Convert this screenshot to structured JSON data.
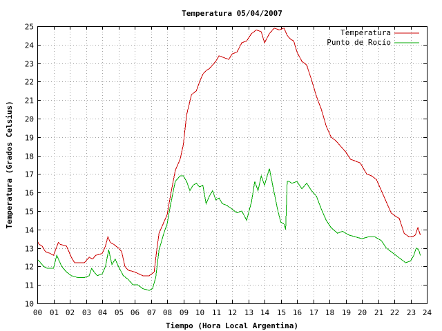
{
  "chart_data": {
    "type": "line",
    "title": "Temperatura 05/04/2007",
    "xlabel": "Tiempo (Hora Local Argentina)",
    "ylabel": "Temperatura (Grados Celsius)",
    "xlim": [
      0,
      24
    ],
    "ylim": [
      10,
      25
    ],
    "xticks": [
      "00",
      "01",
      "02",
      "03",
      "04",
      "05",
      "06",
      "07",
      "08",
      "09",
      "10",
      "11",
      "12",
      "13",
      "14",
      "15",
      "16",
      "17",
      "18",
      "19",
      "20",
      "21",
      "22",
      "23",
      "24"
    ],
    "yticks": [
      "10",
      "11",
      "12",
      "13",
      "14",
      "15",
      "16",
      "17",
      "18",
      "19",
      "20",
      "21",
      "22",
      "23",
      "24",
      "25"
    ],
    "grid": true,
    "legend_position": "top-right",
    "series": [
      {
        "name": "Temperatura",
        "color": "#cc0000",
        "x": [
          0.0,
          0.1,
          0.3,
          0.5,
          0.8,
          1.0,
          1.3,
          1.4,
          1.8,
          2.1,
          2.3,
          2.6,
          2.9,
          3.2,
          3.4,
          3.6,
          4.0,
          4.2,
          4.35,
          4.5,
          4.7,
          5.0,
          5.2,
          5.4,
          5.6,
          6.0,
          6.5,
          6.9,
          7.2,
          7.35,
          7.5,
          7.8,
          8.0,
          8.2,
          8.5,
          8.8,
          9.0,
          9.2,
          9.5,
          9.8,
          10.0,
          10.2,
          10.4,
          10.6,
          10.8,
          11.0,
          11.2,
          11.5,
          11.8,
          12.0,
          12.3,
          12.6,
          12.9,
          13.2,
          13.5,
          13.8,
          14.0,
          14.3,
          14.6,
          14.9,
          15.2,
          15.4,
          15.6,
          15.8,
          16.0,
          16.3,
          16.6,
          16.9,
          17.2,
          17.5,
          17.8,
          18.1,
          18.4,
          18.7,
          19.0,
          19.3,
          19.6,
          19.9,
          20.3,
          20.6,
          20.9,
          21.2,
          21.4,
          21.6,
          21.8,
          22.1,
          22.3,
          22.6,
          22.9,
          23.1,
          23.3,
          23.45,
          23.6
        ],
        "values": [
          13.4,
          13.2,
          13.1,
          12.8,
          12.7,
          12.6,
          13.3,
          13.2,
          13.1,
          12.5,
          12.2,
          12.2,
          12.2,
          12.5,
          12.4,
          12.6,
          12.7,
          13.1,
          13.6,
          13.3,
          13.2,
          13.0,
          12.8,
          12.0,
          11.8,
          11.7,
          11.5,
          11.5,
          11.7,
          12.8,
          13.8,
          14.4,
          14.8,
          15.8,
          17.2,
          17.8,
          18.6,
          20.2,
          21.3,
          21.5,
          22.0,
          22.4,
          22.6,
          22.7,
          22.9,
          23.1,
          23.4,
          23.3,
          23.2,
          23.5,
          23.6,
          24.1,
          24.2,
          24.6,
          24.8,
          24.7,
          24.1,
          24.6,
          24.9,
          24.8,
          24.9,
          24.5,
          24.3,
          24.2,
          23.6,
          23.1,
          22.9,
          22.1,
          21.2,
          20.5,
          19.6,
          19.0,
          18.8,
          18.5,
          18.2,
          17.8,
          17.7,
          17.6,
          17.0,
          16.9,
          16.7,
          16.1,
          15.7,
          15.3,
          14.9,
          14.7,
          14.6,
          13.8,
          13.6,
          13.6,
          13.7,
          14.1,
          13.7
        ]
      },
      {
        "name": "Punto de Rocío",
        "color": "#00aa00",
        "x": [
          0.0,
          0.2,
          0.4,
          0.6,
          1.0,
          1.2,
          1.5,
          1.8,
          2.1,
          2.5,
          2.9,
          3.2,
          3.35,
          3.5,
          3.7,
          4.0,
          4.2,
          4.4,
          4.6,
          4.8,
          5.0,
          5.3,
          5.6,
          5.9,
          6.2,
          6.5,
          6.9,
          7.1,
          7.3,
          7.5,
          7.8,
          8.0,
          8.2,
          8.5,
          8.8,
          9.0,
          9.2,
          9.4,
          9.6,
          9.8,
          10.0,
          10.2,
          10.4,
          10.6,
          10.8,
          11.0,
          11.2,
          11.4,
          11.7,
          12.0,
          12.3,
          12.6,
          12.9,
          13.2,
          13.4,
          13.6,
          13.8,
          14.0,
          14.3,
          14.5,
          14.8,
          15.0,
          15.2,
          15.3,
          15.4,
          15.5,
          15.7,
          16.0,
          16.3,
          16.6,
          16.9,
          17.2,
          17.5,
          17.8,
          18.1,
          18.5,
          18.8,
          19.2,
          19.6,
          20.0,
          20.4,
          20.8,
          21.2,
          21.5,
          21.8,
          22.1,
          22.4,
          22.7,
          23.0,
          23.2,
          23.35,
          23.5,
          23.6
        ],
        "values": [
          12.4,
          12.2,
          12.0,
          11.9,
          11.9,
          12.6,
          12.0,
          11.7,
          11.5,
          11.4,
          11.4,
          11.5,
          11.9,
          11.7,
          11.5,
          11.6,
          12.0,
          12.9,
          12.1,
          12.4,
          12.0,
          11.5,
          11.3,
          11.0,
          11.0,
          10.8,
          10.7,
          10.8,
          11.4,
          12.9,
          13.8,
          14.3,
          15.3,
          16.6,
          16.9,
          16.9,
          16.6,
          16.1,
          16.4,
          16.5,
          16.3,
          16.4,
          15.4,
          15.8,
          16.1,
          15.6,
          15.7,
          15.4,
          15.3,
          15.1,
          14.9,
          15.0,
          14.5,
          15.5,
          16.6,
          16.1,
          16.9,
          16.4,
          17.3,
          16.4,
          15.1,
          14.4,
          14.3,
          14.0,
          16.6,
          16.6,
          16.5,
          16.6,
          16.2,
          16.5,
          16.1,
          15.8,
          15.1,
          14.5,
          14.1,
          13.8,
          13.9,
          13.7,
          13.6,
          13.5,
          13.6,
          13.6,
          13.4,
          13.0,
          12.8,
          12.6,
          12.4,
          12.2,
          12.3,
          12.6,
          13.0,
          12.9,
          12.6
        ]
      }
    ]
  }
}
